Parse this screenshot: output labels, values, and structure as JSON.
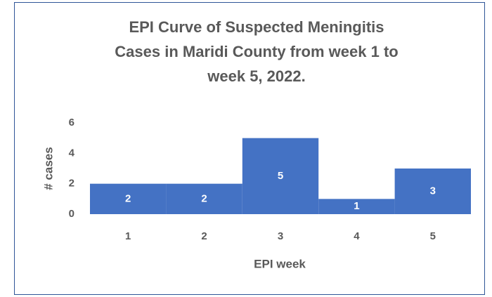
{
  "chart_data": {
    "type": "bar",
    "title": [
      "EPI Curve of Suspected Meningitis",
      "Cases in Maridi County from week 1 to",
      "week 5, 2022."
    ],
    "x_label": "EPI week",
    "y_label": "# cases",
    "categories": [
      "1",
      "2",
      "3",
      "4",
      "5"
    ],
    "values": [
      2,
      2,
      5,
      1,
      3
    ],
    "color": "#4472c4",
    "ylim": [
      0,
      6
    ],
    "yticks": [
      0,
      2,
      4,
      6
    ],
    "grid": false
  }
}
